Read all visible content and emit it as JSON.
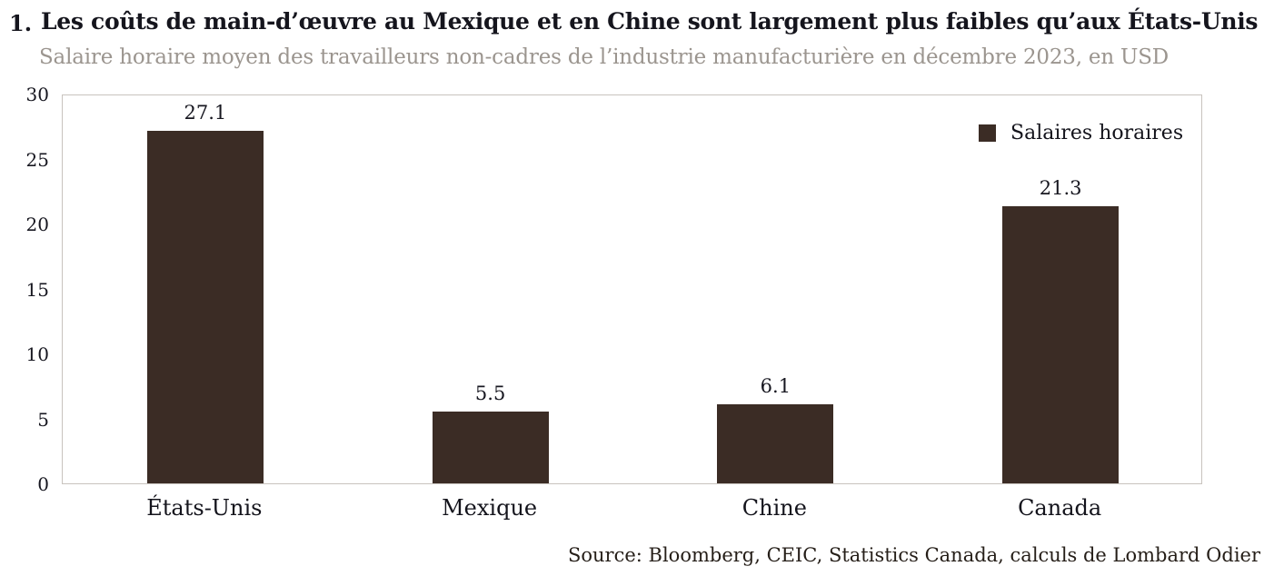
{
  "header": {
    "number": "1.",
    "title": "Les coûts de main-d’œuvre au Mexique et en Chine sont largement plus faibles qu’aux États-Unis",
    "subtitle": "Salaire horaire moyen des travailleurs non-cadres de l’industrie manufacturière en décembre 2023, en USD"
  },
  "chart_data": {
    "type": "bar",
    "title": "Les coûts de main-d’œuvre au Mexique et en Chine sont largement plus faibles qu’aux États-Unis",
    "subtitle": "Salaire horaire moyen des travailleurs non-cadres de l’industrie manufacturière en décembre 2023, en USD",
    "categories": [
      "États-Unis",
      "Mexique",
      "Chine",
      "Canada"
    ],
    "series": [
      {
        "name": "Salaires horaires",
        "values": [
          27.1,
          5.5,
          6.1,
          21.3
        ]
      }
    ],
    "value_labels": [
      "27.1",
      "5.5",
      "6.1",
      "21.3"
    ],
    "xlabel": "",
    "ylabel": "",
    "ylim": [
      0,
      30
    ],
    "yticks": [
      0,
      5,
      10,
      15,
      20,
      25,
      30
    ],
    "grid": false,
    "legend": {
      "label": "Salaires horaires",
      "position": "top-right"
    },
    "bar_color": "#3B2C25"
  },
  "footer": {
    "source": "Source: Bloomberg, CEIC, Statistics Canada, calculs de Lombard Odier"
  },
  "colors": {
    "bar": "#3B2C25",
    "plot_border": "#C8C3BE",
    "title_text": "#15151D",
    "subtitle_text": "#9B958F",
    "axis_text": "#171720",
    "source_text": "#251E18"
  }
}
